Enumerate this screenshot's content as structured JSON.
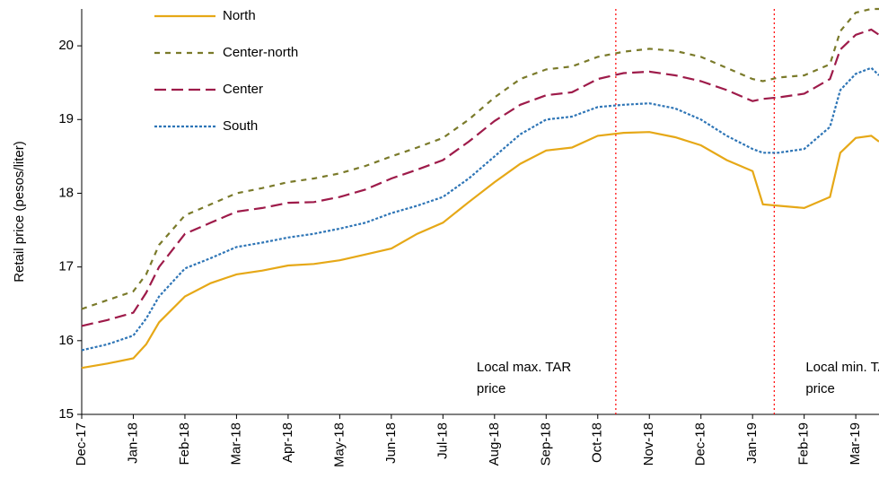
{
  "chart_data": {
    "type": "line",
    "ylabel": "Retail price (pesos/liter)",
    "x": [
      0,
      0.5,
      1,
      1.25,
      1.5,
      2,
      2.5,
      3,
      3.5,
      4,
      4.5,
      5,
      5.5,
      6,
      6.5,
      7,
      7.5,
      8,
      8.5,
      9,
      9.5,
      10,
      10.5,
      11,
      11.5,
      12,
      12.5,
      13,
      13.2,
      13.5,
      14,
      14.5,
      14.7,
      15,
      15.3,
      15.45
    ],
    "series": [
      {
        "name": "North",
        "color": "#e6a817",
        "linestyle": "solid",
        "values": [
          15.63,
          15.69,
          15.76,
          15.95,
          16.25,
          16.6,
          16.78,
          16.9,
          16.95,
          17.02,
          17.04,
          17.09,
          17.17,
          17.25,
          17.45,
          17.6,
          17.88,
          18.15,
          18.4,
          18.58,
          18.62,
          18.78,
          18.82,
          18.83,
          18.76,
          18.65,
          18.45,
          18.3,
          17.85,
          17.83,
          17.8,
          17.95,
          18.55,
          18.75,
          18.78,
          18.7
        ]
      },
      {
        "name": "Center-north",
        "color": "#7a7a2a",
        "linestyle": "dashed",
        "values": [
          16.43,
          16.55,
          16.67,
          16.9,
          17.3,
          17.7,
          17.85,
          18.0,
          18.07,
          18.15,
          18.2,
          18.27,
          18.37,
          18.5,
          18.62,
          18.75,
          19.0,
          19.3,
          19.55,
          19.68,
          19.72,
          19.85,
          19.92,
          19.96,
          19.93,
          19.85,
          19.7,
          19.55,
          19.52,
          19.57,
          19.6,
          19.75,
          20.2,
          20.45,
          20.5,
          20.5
        ]
      },
      {
        "name": "Center",
        "color": "#9e1b4a",
        "linestyle": "longdash",
        "values": [
          16.2,
          16.28,
          16.38,
          16.65,
          17.0,
          17.45,
          17.6,
          17.75,
          17.8,
          17.87,
          17.88,
          17.95,
          18.05,
          18.2,
          18.32,
          18.45,
          18.7,
          18.98,
          19.2,
          19.33,
          19.37,
          19.55,
          19.63,
          19.65,
          19.6,
          19.52,
          19.4,
          19.25,
          19.28,
          19.3,
          19.35,
          19.55,
          19.95,
          20.15,
          20.22,
          20.15
        ]
      },
      {
        "name": "South",
        "color": "#2e75b6",
        "linestyle": "dotted",
        "values": [
          15.87,
          15.95,
          16.07,
          16.3,
          16.6,
          16.98,
          17.12,
          17.27,
          17.33,
          17.4,
          17.45,
          17.52,
          17.6,
          17.73,
          17.83,
          17.95,
          18.2,
          18.5,
          18.8,
          19.0,
          19.04,
          19.17,
          19.2,
          19.22,
          19.15,
          19.0,
          18.78,
          18.6,
          18.55,
          18.55,
          18.6,
          18.9,
          19.4,
          19.62,
          19.7,
          19.6
        ]
      }
    ],
    "xlim": [
      0,
      15.45
    ],
    "xticks": [
      {
        "value": 0,
        "label": "Dec-17"
      },
      {
        "value": 1,
        "label": "Jan-18"
      },
      {
        "value": 2,
        "label": "Feb-18"
      },
      {
        "value": 3,
        "label": "Mar-18"
      },
      {
        "value": 4,
        "label": "Apr-18"
      },
      {
        "value": 5,
        "label": "May-18"
      },
      {
        "value": 6,
        "label": "Jun-18"
      },
      {
        "value": 7,
        "label": "Jul-18"
      },
      {
        "value": 8,
        "label": "Aug-18"
      },
      {
        "value": 9,
        "label": "Sep-18"
      },
      {
        "value": 10,
        "label": "Oct-18"
      },
      {
        "value": 11,
        "label": "Nov-18"
      },
      {
        "value": 12,
        "label": "Dec-18"
      },
      {
        "value": 13,
        "label": "Jan-19"
      },
      {
        "value": 14,
        "label": "Feb-19"
      },
      {
        "value": 15,
        "label": "Mar-19"
      }
    ],
    "ylim": [
      15,
      20.5
    ],
    "yticks": [
      15,
      16,
      17,
      18,
      19,
      20
    ],
    "grid": false,
    "legend": "upper left",
    "vlines": [
      {
        "x": 10.35,
        "color": "#ff0000",
        "text": "Local max. TAR price"
      },
      {
        "x": 13.42,
        "color": "#ff0000",
        "text": "Local min. TAR price"
      }
    ]
  }
}
